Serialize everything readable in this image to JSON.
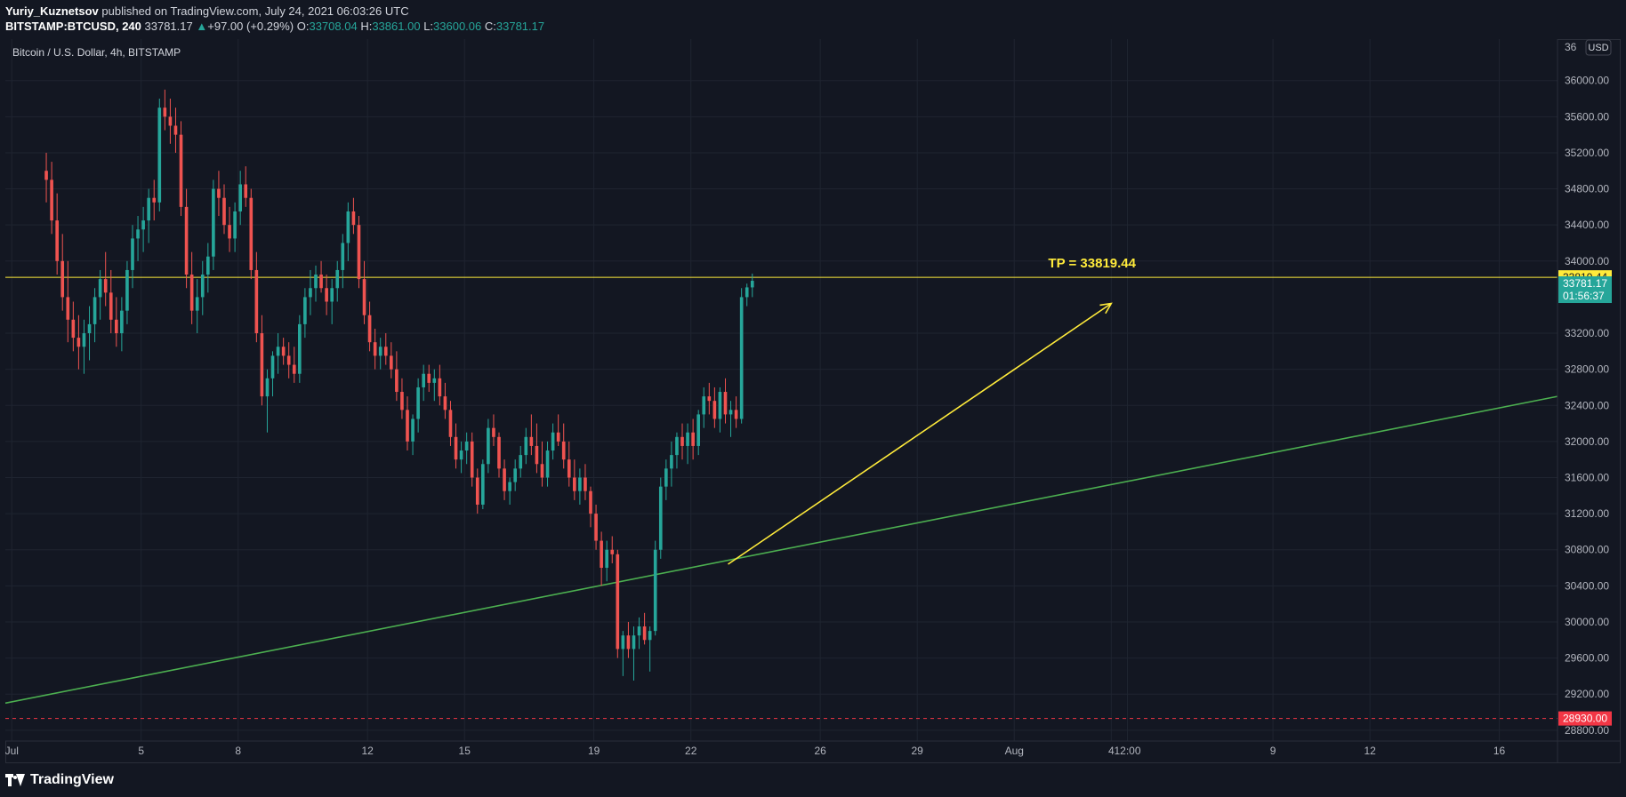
{
  "header": {
    "author": "Yuriy_Kuznetsov",
    "published": " published on TradingView.com, July 24, 2021 06:03:26 UTC",
    "symbol": "BITSTAMP:BTCUSD, 240",
    "last": "33781.17",
    "change": "+97.00 (+0.29%)",
    "o_label": "O:",
    "o": "33708.04",
    "h_label": "H:",
    "h": "33861.00",
    "l_label": "L:",
    "l": "33600.06",
    "c_label": "C:",
    "c": "33781.17"
  },
  "footer": {
    "brand": "TradingView"
  },
  "colors": {
    "background": "#131722",
    "grid": "#1f2430",
    "up": "#26a69a",
    "down": "#ef5350",
    "target": "#ffeb3b",
    "trend": "#4caf50",
    "support": "#f23645"
  },
  "chart_data": {
    "type": "candlestick",
    "title": "Bitcoin / U.S. Dollar, 4h, BITSTAMP",
    "currency": "USD",
    "ylim": [
      28680,
      36460
    ],
    "y_ticks": [
      "28800.00",
      "29200.00",
      "29600.00",
      "30000.00",
      "30400.00",
      "30800.00",
      "31200.00",
      "31600.00",
      "32000.00",
      "32400.00",
      "32800.00",
      "33200.00",
      "34000.00",
      "34400.00",
      "34800.00",
      "35200.00",
      "35600.00",
      "36000.00"
    ],
    "y_tick_values": [
      28800,
      29200,
      29600,
      30000,
      30400,
      30800,
      31200,
      31600,
      32000,
      32400,
      32800,
      33200,
      34000,
      34400,
      34800,
      35200,
      35600,
      36000
    ],
    "top_partial_tick": "36",
    "x_labels": [
      "Jul",
      "5",
      "8",
      "12",
      "15",
      "19",
      "22",
      "26",
      "29",
      "Aug",
      "4",
      "12:00",
      "9",
      "12",
      "16"
    ],
    "x_label_days": [
      1,
      5,
      8,
      12,
      15,
      19,
      22,
      26,
      29,
      32,
      35,
      35.5,
      40,
      43,
      47
    ],
    "x_range_days": [
      0.8,
      48.8
    ],
    "candle_interval": "4h",
    "candles_ohlc": [
      [
        35000,
        35200,
        34650,
        34900
      ],
      [
        34900,
        35100,
        34300,
        34450
      ],
      [
        34450,
        34750,
        33850,
        34000
      ],
      [
        34000,
        34300,
        33450,
        33600
      ],
      [
        33600,
        34000,
        33100,
        33350
      ],
      [
        33350,
        33550,
        33000,
        33150
      ],
      [
        33150,
        33400,
        32800,
        33050
      ],
      [
        33050,
        33350,
        32750,
        33200
      ],
      [
        33200,
        33500,
        32900,
        33300
      ],
      [
        33300,
        33700,
        33100,
        33600
      ],
      [
        33600,
        33900,
        33350,
        33800
      ],
      [
        33800,
        34100,
        33500,
        33650
      ],
      [
        33650,
        33900,
        33200,
        33350
      ],
      [
        33350,
        33600,
        33050,
        33200
      ],
      [
        33200,
        33600,
        33000,
        33450
      ],
      [
        33450,
        34000,
        33300,
        33900
      ],
      [
        33900,
        34400,
        33700,
        34250
      ],
      [
        34250,
        34500,
        34000,
        34350
      ],
      [
        34350,
        34600,
        34100,
        34450
      ],
      [
        34450,
        34800,
        34200,
        34700
      ],
      [
        34700,
        34900,
        34450,
        34650
      ],
      [
        34650,
        35800,
        34550,
        35700
      ],
      [
        35700,
        35900,
        35450,
        35600
      ],
      [
        35600,
        35800,
        35300,
        35500
      ],
      [
        35500,
        35700,
        35200,
        35400
      ],
      [
        35400,
        35550,
        34500,
        34600
      ],
      [
        34600,
        34800,
        33700,
        33850
      ],
      [
        33850,
        34100,
        33300,
        33450
      ],
      [
        33450,
        33800,
        33200,
        33600
      ],
      [
        33600,
        34000,
        33400,
        33850
      ],
      [
        33850,
        34200,
        33650,
        34050
      ],
      [
        34050,
        34900,
        33900,
        34800
      ],
      [
        34800,
        35000,
        34500,
        34700
      ],
      [
        34700,
        34850,
        34300,
        34400
      ],
      [
        34400,
        34600,
        34100,
        34250
      ],
      [
        34250,
        34650,
        34100,
        34550
      ],
      [
        34550,
        35000,
        34400,
        34850
      ],
      [
        34850,
        35050,
        34600,
        34700
      ],
      [
        34700,
        34800,
        33800,
        33900
      ],
      [
        33900,
        34100,
        33100,
        33200
      ],
      [
        33200,
        33400,
        32400,
        32500
      ],
      [
        32500,
        32800,
        32100,
        32700
      ],
      [
        32700,
        33000,
        32500,
        32950
      ],
      [
        32950,
        33200,
        32750,
        33050
      ],
      [
        33050,
        33150,
        32850,
        32950
      ],
      [
        32950,
        33100,
        32700,
        32850
      ],
      [
        32850,
        33050,
        32650,
        32750
      ],
      [
        32750,
        33400,
        32650,
        33300
      ],
      [
        33300,
        33700,
        33150,
        33600
      ],
      [
        33600,
        33900,
        33400,
        33700
      ],
      [
        33700,
        33950,
        33550,
        33850
      ],
      [
        33850,
        34000,
        33650,
        33700
      ],
      [
        33700,
        33850,
        33400,
        33550
      ],
      [
        33550,
        33800,
        33300,
        33700
      ],
      [
        33700,
        34000,
        33550,
        33900
      ],
      [
        33900,
        34300,
        33700,
        34200
      ],
      [
        34200,
        34650,
        34000,
        34550
      ],
      [
        34550,
        34700,
        34300,
        34400
      ],
      [
        34400,
        34500,
        33700,
        33800
      ],
      [
        33800,
        34000,
        33300,
        33400
      ],
      [
        33400,
        33550,
        33000,
        33100
      ],
      [
        33100,
        33250,
        32800,
        32950
      ],
      [
        32950,
        33150,
        32800,
        33050
      ],
      [
        33050,
        33200,
        32850,
        32950
      ],
      [
        32950,
        33100,
        32700,
        32800
      ],
      [
        32800,
        33000,
        32450,
        32550
      ],
      [
        32550,
        32700,
        32250,
        32350
      ],
      [
        32350,
        32500,
        31900,
        32000
      ],
      [
        32000,
        32300,
        31850,
        32250
      ],
      [
        32250,
        32700,
        32100,
        32600
      ],
      [
        32600,
        32850,
        32450,
        32750
      ],
      [
        32750,
        32850,
        32550,
        32650
      ],
      [
        32650,
        32800,
        32450,
        32700
      ],
      [
        32700,
        32850,
        32400,
        32500
      ],
      [
        32500,
        32650,
        32250,
        32350
      ],
      [
        32350,
        32450,
        31950,
        32050
      ],
      [
        32050,
        32200,
        31700,
        31800
      ],
      [
        31800,
        32000,
        31650,
        31900
      ],
      [
        31900,
        32100,
        31750,
        32000
      ],
      [
        32000,
        32100,
        31500,
        31600
      ],
      [
        31600,
        31700,
        31200,
        31300
      ],
      [
        31300,
        31800,
        31250,
        31750
      ],
      [
        31750,
        32250,
        31650,
        32150
      ],
      [
        32150,
        32300,
        31950,
        32050
      ],
      [
        32050,
        32100,
        31600,
        31700
      ],
      [
        31700,
        31800,
        31350,
        31450
      ],
      [
        31450,
        31600,
        31300,
        31550
      ],
      [
        31550,
        31800,
        31450,
        31700
      ],
      [
        31700,
        31950,
        31600,
        31850
      ],
      [
        31850,
        32150,
        31750,
        32050
      ],
      [
        32050,
        32300,
        31850,
        31950
      ],
      [
        31950,
        32200,
        31650,
        31750
      ],
      [
        31750,
        32000,
        31500,
        31600
      ],
      [
        31600,
        32000,
        31500,
        31900
      ],
      [
        31900,
        32200,
        31800,
        32100
      ],
      [
        32100,
        32300,
        31950,
        32000
      ],
      [
        32000,
        32200,
        31700,
        31800
      ],
      [
        31800,
        32000,
        31500,
        31600
      ],
      [
        31600,
        31800,
        31350,
        31450
      ],
      [
        31450,
        31700,
        31300,
        31600
      ],
      [
        31600,
        31750,
        31350,
        31450
      ],
      [
        31450,
        31500,
        31050,
        31200
      ],
      [
        31200,
        31300,
        30800,
        30900
      ],
      [
        30900,
        31000,
        30400,
        30600
      ],
      [
        30600,
        30900,
        30450,
        30800
      ],
      [
        30800,
        30950,
        30650,
        30750
      ],
      [
        30750,
        30800,
        29600,
        29700
      ],
      [
        29700,
        29900,
        29400,
        29850
      ],
      [
        29850,
        30000,
        29600,
        29700
      ],
      [
        29700,
        29950,
        29350,
        29850
      ],
      [
        29850,
        30050,
        29700,
        29950
      ],
      [
        29950,
        30100,
        29750,
        29800
      ],
      [
        29800,
        29950,
        29450,
        29900
      ],
      [
        29900,
        30900,
        29850,
        30800
      ],
      [
        30800,
        31600,
        30700,
        31500
      ],
      [
        31500,
        31800,
        31350,
        31700
      ],
      [
        31700,
        32000,
        31500,
        31850
      ],
      [
        31850,
        32100,
        31700,
        32050
      ],
      [
        32050,
        32200,
        31800,
        31950
      ],
      [
        31950,
        32200,
        31750,
        32100
      ],
      [
        32100,
        32250,
        31800,
        31950
      ],
      [
        31950,
        32350,
        31850,
        32300
      ],
      [
        32300,
        32600,
        32150,
        32500
      ],
      [
        32500,
        32650,
        32300,
        32450
      ],
      [
        32450,
        32600,
        32150,
        32250
      ],
      [
        32250,
        32600,
        32100,
        32550
      ],
      [
        32550,
        32700,
        32200,
        32300
      ],
      [
        32300,
        32450,
        32050,
        32350
      ],
      [
        32350,
        32500,
        32150,
        32250
      ],
      [
        32250,
        33700,
        32200,
        33600
      ],
      [
        33600,
        33750,
        33500,
        33708.04
      ],
      [
        33708.04,
        33861,
        33600.06,
        33781.17
      ]
    ],
    "annotations": {
      "tp_label": "TP = 33819.44",
      "tp_value": 33819.44,
      "tp_badge": "33819.44",
      "last_price_badge": "33781.17",
      "last_price_value": 33781.17,
      "countdown": "01:56:37",
      "support_badge": "28930.00",
      "support_value": 28930,
      "arrow": {
        "from": [
          23.15,
          30640
        ],
        "to": [
          35.0,
          33530
        ]
      },
      "trendline": {
        "from": [
          0.8,
          29100
        ],
        "to": [
          48.8,
          32500
        ]
      }
    }
  }
}
